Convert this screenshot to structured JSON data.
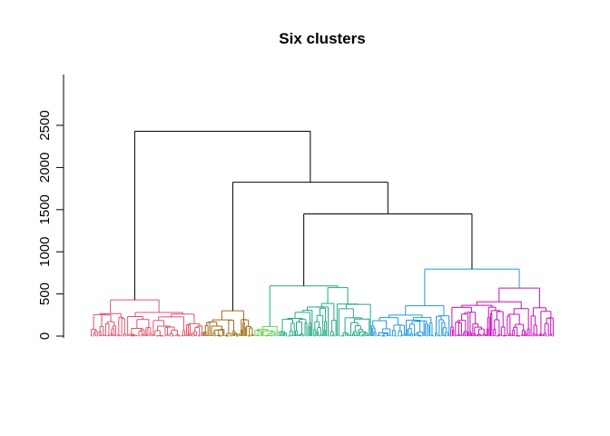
{
  "chart_data": {
    "type": "dendrogram",
    "title": "Six clusters",
    "xlabel": "",
    "ylabel": "",
    "ylim": [
      0,
      2600
    ],
    "y_ticks": [
      0,
      500,
      1000,
      1500,
      2000,
      2500
    ],
    "y_tick_labels": [
      "0",
      "500",
      "1000",
      "1500",
      "2000",
      "2500"
    ],
    "grid": false,
    "cut_clusters": 6,
    "clusters": [
      {
        "color": "#DF536B",
        "leaves": 95,
        "root_height": 430
      },
      {
        "color": "#9B6A12",
        "leaves": 43,
        "root_height": 300
      },
      {
        "color": "#61D04F",
        "leaves": 20,
        "root_height": 115
      },
      {
        "color": "#22A884",
        "leaves": 78,
        "root_height": 575
      },
      {
        "color": "#2297E6",
        "leaves": 66,
        "root_height": 360
      },
      {
        "color": "#CD0BBC",
        "leaves": 88,
        "root_height": 570
      }
    ],
    "upper_merges": [
      {
        "left": "cluster-3",
        "right": "cluster-4",
        "height": 595,
        "color": "#22A884"
      },
      {
        "left": "cluster-5",
        "right": "cluster-6",
        "height": 795,
        "color": "#2297E6"
      },
      {
        "left": "merge-1",
        "right": "merge-2",
        "height": 1450,
        "color": "#000000"
      },
      {
        "left": "cluster-2",
        "right": "merge-3",
        "height": 1825,
        "color": "#000000"
      },
      {
        "left": "cluster-1",
        "right": "merge-4",
        "height": 2430,
        "color": "#000000"
      }
    ]
  }
}
